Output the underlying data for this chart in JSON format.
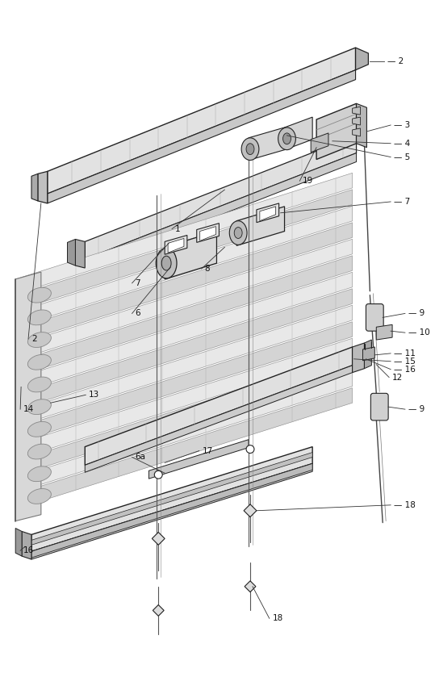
{
  "bg_color": "#ffffff",
  "lc": "#222222",
  "fig_width": 5.39,
  "fig_height": 8.55,
  "dpi": 100,
  "slat_count": 14,
  "slat_color_a": "#e8e8e8",
  "slat_color_b": "#d4d4d4",
  "slat_edge": "#888888",
  "rail_color": "#dddddd",
  "rail_dark": "#bbbbbb",
  "tape_color": "#cccccc",
  "label_fs": 7.5,
  "leader_lw": 0.6,
  "leader_color": "#333333"
}
